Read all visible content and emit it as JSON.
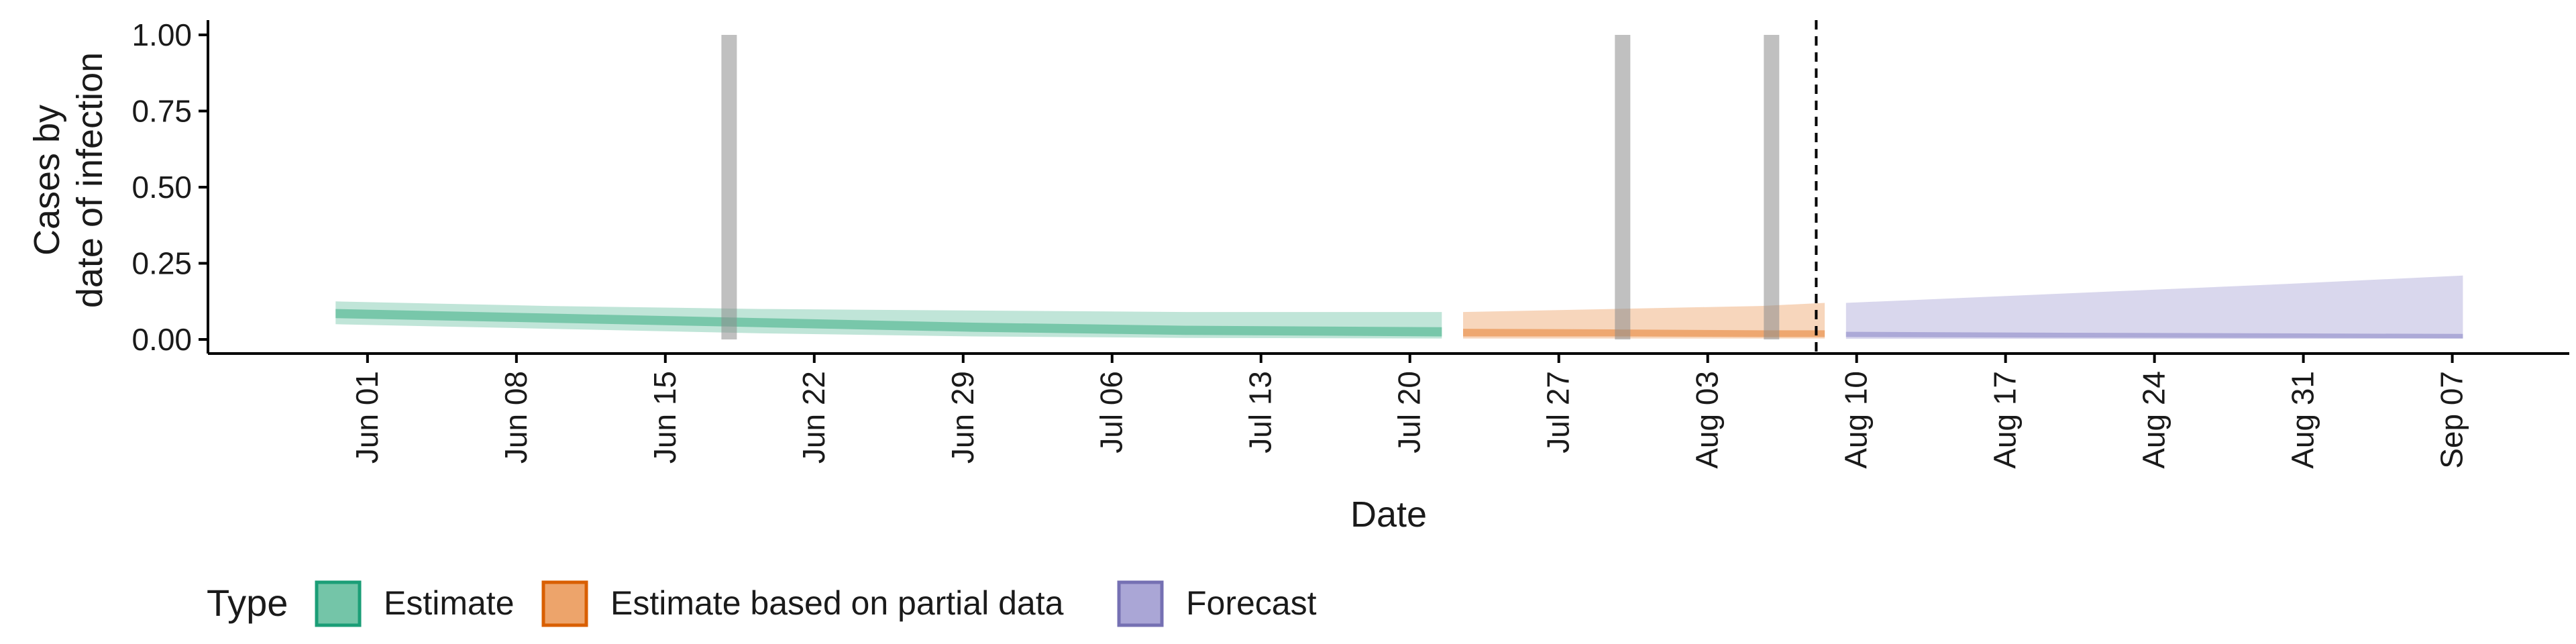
{
  "chart_data": {
    "type": "area",
    "xlabel": "Date",
    "ylabel_lines": [
      "Cases by",
      "date of infection"
    ],
    "ylim": [
      0,
      1.0
    ],
    "y_ticks": [
      "0.00",
      "0.25",
      "0.50",
      "0.75",
      "1.00"
    ],
    "y_tick_values": [
      0,
      0.25,
      0.5,
      0.75,
      1.0
    ],
    "x_range": [
      "2021-05-25",
      "2021-09-13"
    ],
    "x_ticks": [
      {
        "date": "2021-06-01",
        "label": "Jun 01"
      },
      {
        "date": "2021-06-08",
        "label": "Jun 08"
      },
      {
        "date": "2021-06-15",
        "label": "Jun 15"
      },
      {
        "date": "2021-06-22",
        "label": "Jun 22"
      },
      {
        "date": "2021-06-29",
        "label": "Jun 29"
      },
      {
        "date": "2021-07-06",
        "label": "Jul 06"
      },
      {
        "date": "2021-07-13",
        "label": "Jul 13"
      },
      {
        "date": "2021-07-20",
        "label": "Jul 20"
      },
      {
        "date": "2021-07-27",
        "label": "Jul 27"
      },
      {
        "date": "2021-08-03",
        "label": "Aug 03"
      },
      {
        "date": "2021-08-10",
        "label": "Aug 10"
      },
      {
        "date": "2021-08-17",
        "label": "Aug 17"
      },
      {
        "date": "2021-08-24",
        "label": "Aug 24"
      },
      {
        "date": "2021-08-31",
        "label": "Aug 31"
      },
      {
        "date": "2021-09-07",
        "label": "Sep 07"
      }
    ],
    "vertical_bars": [
      {
        "date": "2021-06-18",
        "value": 1.0
      },
      {
        "date": "2021-07-30",
        "value": 1.0
      },
      {
        "date": "2021-08-06",
        "value": 1.0
      }
    ],
    "reference_line": {
      "date": "2021-08-09",
      "style": "dashed"
    },
    "series": [
      {
        "name": "Estimate",
        "color": "#1b9e77",
        "fill": "#74c5a8",
        "x": [
          "2021-05-31",
          "2021-06-10",
          "2021-06-20",
          "2021-06-30",
          "2021-07-10",
          "2021-07-22"
        ],
        "outer_lower": [
          0.05,
          0.035,
          0.02,
          0.01,
          0.005,
          0.003
        ],
        "outer_upper": [
          0.125,
          0.11,
          0.1,
          0.095,
          0.09,
          0.09
        ],
        "inner_lower": [
          0.07,
          0.055,
          0.04,
          0.025,
          0.015,
          0.01
        ],
        "inner_upper": [
          0.1,
          0.085,
          0.07,
          0.055,
          0.045,
          0.04
        ]
      },
      {
        "name": "Estimate based on partial data",
        "color": "#d95f02",
        "fill": "#eda46b",
        "x": [
          "2021-07-23",
          "2021-07-30",
          "2021-08-06",
          "2021-08-09"
        ],
        "outer_lower": [
          0.003,
          0.003,
          0.003,
          0.003
        ],
        "outer_upper": [
          0.09,
          0.1,
          0.11,
          0.12
        ],
        "inner_lower": [
          0.01,
          0.01,
          0.008,
          0.008
        ],
        "inner_upper": [
          0.035,
          0.033,
          0.03,
          0.03
        ]
      },
      {
        "name": "Forecast",
        "color": "#7570b3",
        "fill": "#aaa6d6",
        "x": [
          "2021-08-10",
          "2021-08-20",
          "2021-08-30",
          "2021-09-08"
        ],
        "outer_lower": [
          0.002,
          0.002,
          0.002,
          0.002
        ],
        "outer_upper": [
          0.12,
          0.15,
          0.18,
          0.21
        ],
        "inner_lower": [
          0.008,
          0.006,
          0.005,
          0.004
        ],
        "inner_upper": [
          0.025,
          0.022,
          0.02,
          0.018
        ]
      }
    ],
    "legend": {
      "title": "Type",
      "position": "bottom-left",
      "items": [
        "Estimate",
        "Estimate based on partial data",
        "Forecast"
      ]
    },
    "grid": false
  }
}
